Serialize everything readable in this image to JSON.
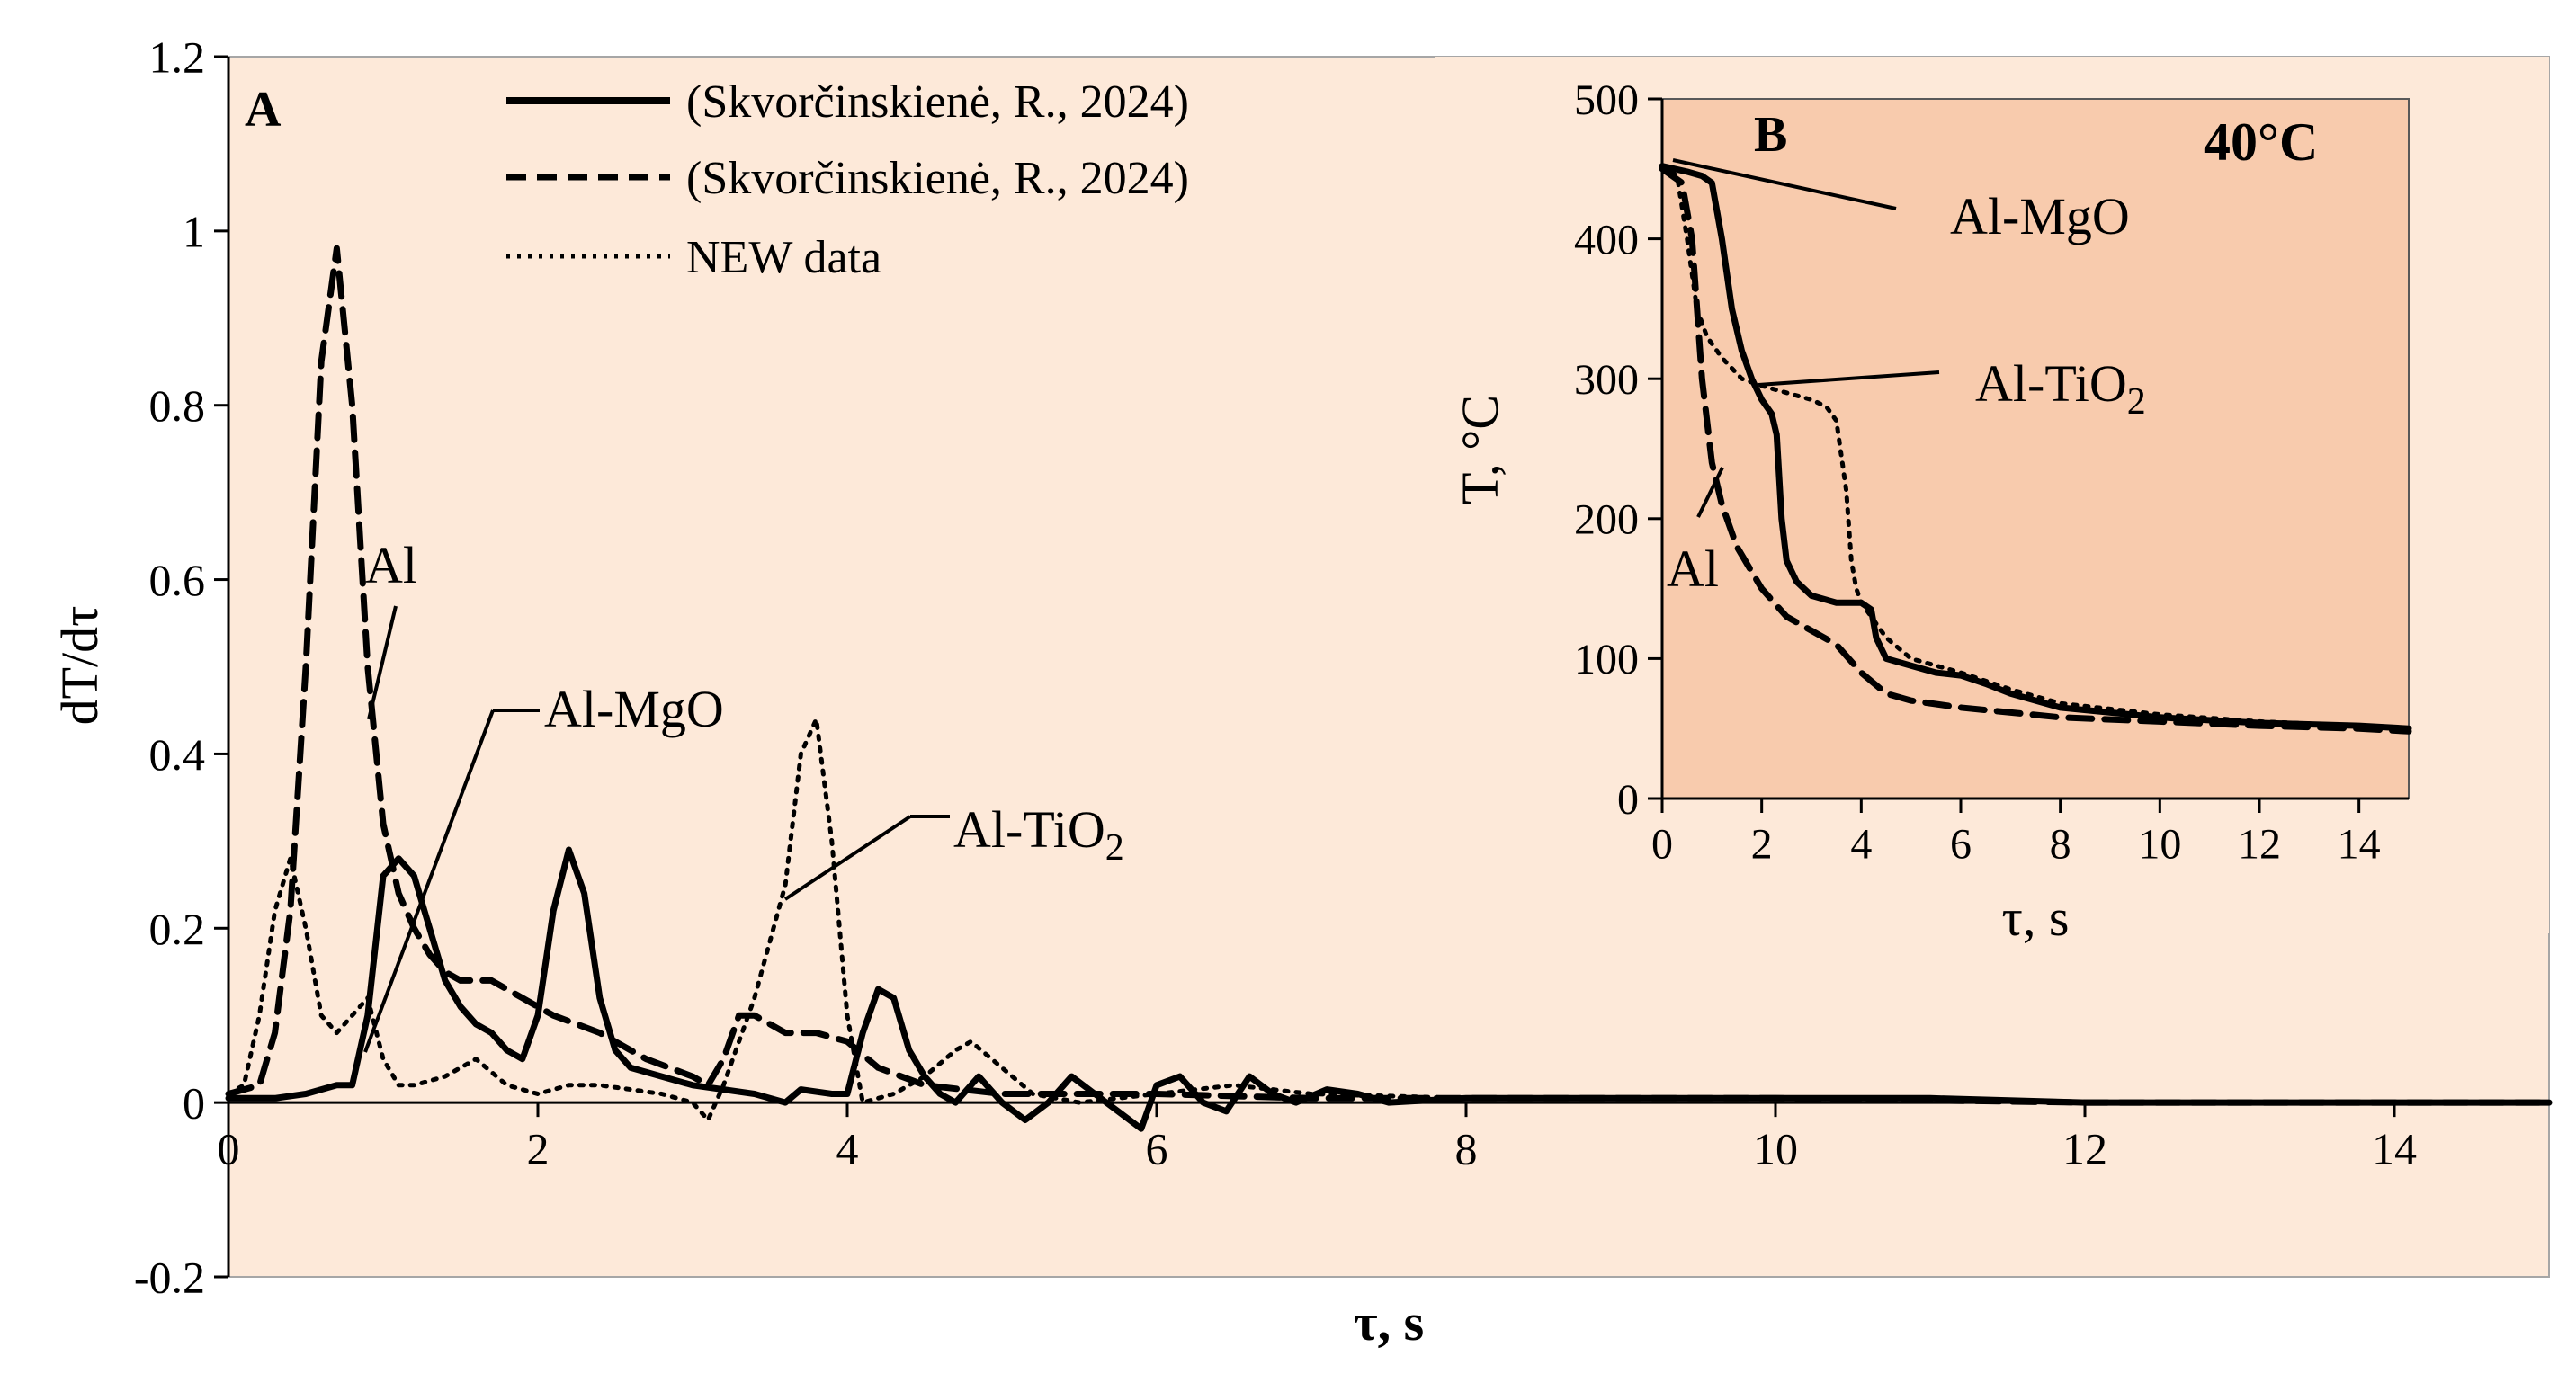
{
  "colors": {
    "panel_a_bg": "#fde9d9",
    "panel_b_bg": "#f8cbad",
    "line": "#000000"
  },
  "chart_data": [
    {
      "id": "A",
      "type": "line",
      "panel_label": "A",
      "xlabel": "τ, s",
      "ylabel": "dT/dτ",
      "xlim": [
        0,
        15
      ],
      "ylim": [
        -0.2,
        1.2
      ],
      "x_ticks": [
        0,
        2,
        4,
        6,
        8,
        10,
        12,
        14
      ],
      "x_tick_labels": [
        "0",
        "2",
        "4",
        "6",
        "8",
        "10",
        "12",
        "14"
      ],
      "y_ticks": [
        -0.2,
        0,
        0.2,
        0.4,
        0.6,
        0.8,
        1,
        1.2
      ],
      "y_tick_labels": [
        "-0.2",
        "0",
        "0.2",
        "0.4",
        "0.6",
        "0.8",
        "1",
        "1.2"
      ],
      "legend": [
        {
          "style": "solid",
          "label": "(Skvorčinskienė, R., 2024)"
        },
        {
          "style": "dashed",
          "label": "(Skvorčinskienė, R., 2024)"
        },
        {
          "style": "dotted",
          "label": "NEW data"
        }
      ],
      "series": [
        {
          "name": "Al-MgO",
          "style": "solid",
          "points": [
            [
              0,
              0.005
            ],
            [
              0.3,
              0.005
            ],
            [
              0.5,
              0.01
            ],
            [
              0.6,
              0.015
            ],
            [
              0.7,
              0.02
            ],
            [
              0.8,
              0.02
            ],
            [
              0.9,
              0.1
            ],
            [
              1.0,
              0.26
            ],
            [
              1.1,
              0.28
            ],
            [
              1.2,
              0.26
            ],
            [
              1.3,
              0.2
            ],
            [
              1.4,
              0.14
            ],
            [
              1.5,
              0.11
            ],
            [
              1.6,
              0.09
            ],
            [
              1.7,
              0.08
            ],
            [
              1.8,
              0.06
            ],
            [
              1.9,
              0.05
            ],
            [
              2.0,
              0.1
            ],
            [
              2.1,
              0.22
            ],
            [
              2.2,
              0.29
            ],
            [
              2.3,
              0.24
            ],
            [
              2.4,
              0.12
            ],
            [
              2.5,
              0.06
            ],
            [
              2.6,
              0.04
            ],
            [
              2.8,
              0.03
            ],
            [
              3.0,
              0.02
            ],
            [
              3.2,
              0.015
            ],
            [
              3.4,
              0.01
            ],
            [
              3.6,
              0.0
            ],
            [
              3.7,
              0.015
            ],
            [
              3.9,
              0.01
            ],
            [
              4.0,
              0.01
            ],
            [
              4.1,
              0.08
            ],
            [
              4.2,
              0.13
            ],
            [
              4.3,
              0.12
            ],
            [
              4.4,
              0.06
            ],
            [
              4.5,
              0.03
            ],
            [
              4.6,
              0.01
            ],
            [
              4.7,
              0.0
            ],
            [
              4.85,
              0.03
            ],
            [
              5.0,
              0.0
            ],
            [
              5.15,
              -0.02
            ],
            [
              5.3,
              0.0
            ],
            [
              5.45,
              0.03
            ],
            [
              5.6,
              0.01
            ],
            [
              5.75,
              -0.01
            ],
            [
              5.9,
              -0.03
            ],
            [
              6.0,
              0.02
            ],
            [
              6.15,
              0.03
            ],
            [
              6.3,
              0.0
            ],
            [
              6.45,
              -0.01
            ],
            [
              6.6,
              0.03
            ],
            [
              6.75,
              0.01
            ],
            [
              6.9,
              0.0
            ],
            [
              7.1,
              0.015
            ],
            [
              7.3,
              0.01
            ],
            [
              7.5,
              0.0
            ],
            [
              8,
              0.005
            ],
            [
              9,
              0.005
            ],
            [
              9.8,
              0.005
            ],
            [
              10,
              0.005
            ],
            [
              11,
              0.005
            ],
            [
              12,
              0.0
            ],
            [
              13,
              0.0
            ],
            [
              14,
              0.0
            ],
            [
              15,
              0.0
            ]
          ]
        },
        {
          "name": "Al",
          "style": "dashed",
          "points": [
            [
              0,
              0.01
            ],
            [
              0.2,
              0.02
            ],
            [
              0.3,
              0.08
            ],
            [
              0.4,
              0.22
            ],
            [
              0.5,
              0.5
            ],
            [
              0.6,
              0.85
            ],
            [
              0.7,
              0.98
            ],
            [
              0.8,
              0.8
            ],
            [
              0.9,
              0.5
            ],
            [
              1.0,
              0.32
            ],
            [
              1.1,
              0.24
            ],
            [
              1.2,
              0.2
            ],
            [
              1.3,
              0.17
            ],
            [
              1.4,
              0.15
            ],
            [
              1.5,
              0.14
            ],
            [
              1.7,
              0.14
            ],
            [
              1.9,
              0.12
            ],
            [
              2.1,
              0.1
            ],
            [
              2.4,
              0.08
            ],
            [
              2.7,
              0.05
            ],
            [
              3.0,
              0.03
            ],
            [
              3.1,
              0.02
            ],
            [
              3.2,
              0.05
            ],
            [
              3.3,
              0.1
            ],
            [
              3.4,
              0.1
            ],
            [
              3.6,
              0.08
            ],
            [
              3.8,
              0.08
            ],
            [
              4.0,
              0.07
            ],
            [
              4.2,
              0.04
            ],
            [
              4.5,
              0.02
            ],
            [
              5.0,
              0.01
            ],
            [
              5.5,
              0.01
            ],
            [
              6.0,
              0.01
            ],
            [
              7,
              0.005
            ],
            [
              8,
              0.005
            ],
            [
              10,
              0.005
            ],
            [
              12,
              0.0
            ],
            [
              15,
              0.0
            ]
          ]
        },
        {
          "name": "Al-TiO2",
          "style": "dotted",
          "points": [
            [
              0,
              0.01
            ],
            [
              0.1,
              0.02
            ],
            [
              0.2,
              0.1
            ],
            [
              0.3,
              0.22
            ],
            [
              0.4,
              0.28
            ],
            [
              0.5,
              0.2
            ],
            [
              0.6,
              0.1
            ],
            [
              0.7,
              0.08
            ],
            [
              0.8,
              0.1
            ],
            [
              0.9,
              0.12
            ],
            [
              1.0,
              0.05
            ],
            [
              1.1,
              0.02
            ],
            [
              1.2,
              0.02
            ],
            [
              1.4,
              0.03
            ],
            [
              1.6,
              0.05
            ],
            [
              1.8,
              0.02
            ],
            [
              2.0,
              0.01
            ],
            [
              2.2,
              0.02
            ],
            [
              2.4,
              0.02
            ],
            [
              2.6,
              0.015
            ],
            [
              2.8,
              0.01
            ],
            [
              3.0,
              0.0
            ],
            [
              3.1,
              -0.02
            ],
            [
              3.2,
              0.02
            ],
            [
              3.4,
              0.12
            ],
            [
              3.6,
              0.25
            ],
            [
              3.7,
              0.4
            ],
            [
              3.8,
              0.44
            ],
            [
              3.9,
              0.3
            ],
            [
              4.0,
              0.1
            ],
            [
              4.1,
              0.0
            ],
            [
              4.3,
              0.01
            ],
            [
              4.5,
              0.03
            ],
            [
              4.7,
              0.06
            ],
            [
              4.8,
              0.07
            ],
            [
              5.0,
              0.04
            ],
            [
              5.2,
              0.01
            ],
            [
              5.5,
              0.0
            ],
            [
              6.0,
              0.01
            ],
            [
              6.5,
              0.02
            ],
            [
              7,
              0.01
            ],
            [
              8,
              0.005
            ],
            [
              9,
              0.005
            ],
            [
              10,
              0.005
            ],
            [
              12,
              0.0
            ],
            [
              15,
              0.0
            ]
          ]
        }
      ],
      "annotations": [
        {
          "text": "Al",
          "series": "Al"
        },
        {
          "text": "Al-MgO",
          "series": "Al-MgO"
        },
        {
          "text": "Al-TiO",
          "subscript": "2",
          "series": "Al-TiO2"
        }
      ]
    },
    {
      "id": "B",
      "type": "line",
      "panel_label": "B",
      "title": "40°C",
      "xlabel": "τ, s",
      "ylabel": "T, °C",
      "xlim": [
        0,
        15
      ],
      "ylim": [
        0,
        500
      ],
      "x_ticks": [
        0,
        2,
        4,
        6,
        8,
        10,
        12,
        14
      ],
      "x_tick_labels": [
        "0",
        "2",
        "4",
        "6",
        "8",
        "10",
        "12",
        "14"
      ],
      "y_ticks": [
        0,
        100,
        200,
        300,
        400,
        500
      ],
      "y_tick_labels": [
        "0",
        "100",
        "200",
        "300",
        "400",
        "500"
      ],
      "series": [
        {
          "name": "Al-MgO",
          "style": "solid",
          "points": [
            [
              0,
              452
            ],
            [
              0.5,
              448
            ],
            [
              0.8,
              445
            ],
            [
              1.0,
              440
            ],
            [
              1.2,
              400
            ],
            [
              1.4,
              350
            ],
            [
              1.6,
              320
            ],
            [
              1.8,
              300
            ],
            [
              2.0,
              285
            ],
            [
              2.2,
              275
            ],
            [
              2.3,
              260
            ],
            [
              2.4,
              200
            ],
            [
              2.5,
              170
            ],
            [
              2.7,
              155
            ],
            [
              3.0,
              145
            ],
            [
              3.5,
              140
            ],
            [
              4.0,
              140
            ],
            [
              4.2,
              135
            ],
            [
              4.3,
              115
            ],
            [
              4.5,
              100
            ],
            [
              5.0,
              95
            ],
            [
              5.5,
              90
            ],
            [
              6.0,
              88
            ],
            [
              6.5,
              82
            ],
            [
              7,
              75
            ],
            [
              8,
              65
            ],
            [
              10,
              58
            ],
            [
              12,
              54
            ],
            [
              14,
              52
            ],
            [
              15,
              50
            ]
          ]
        },
        {
          "name": "Al",
          "style": "dashed",
          "points": [
            [
              0,
              450
            ],
            [
              0.4,
              440
            ],
            [
              0.6,
              400
            ],
            [
              0.8,
              300
            ],
            [
              1.0,
              240
            ],
            [
              1.2,
              210
            ],
            [
              1.5,
              180
            ],
            [
              2.0,
              150
            ],
            [
              2.5,
              130
            ],
            [
              3.0,
              120
            ],
            [
              3.5,
              110
            ],
            [
              4.0,
              90
            ],
            [
              4.5,
              75
            ],
            [
              5,
              70
            ],
            [
              6,
              65
            ],
            [
              8,
              58
            ],
            [
              10,
              55
            ],
            [
              12,
              52
            ],
            [
              14,
              50
            ],
            [
              15,
              48
            ]
          ]
        },
        {
          "name": "Al-TiO2",
          "style": "dotted",
          "points": [
            [
              0,
              452
            ],
            [
              0.3,
              445
            ],
            [
              0.5,
              400
            ],
            [
              0.7,
              350
            ],
            [
              0.9,
              330
            ],
            [
              1.2,
              315
            ],
            [
              1.6,
              300
            ],
            [
              2.0,
              295
            ],
            [
              2.5,
              290
            ],
            [
              3.0,
              285
            ],
            [
              3.3,
              280
            ],
            [
              3.5,
              270
            ],
            [
              3.7,
              220
            ],
            [
              3.8,
              170
            ],
            [
              3.9,
              150
            ],
            [
              4.0,
              140
            ],
            [
              4.2,
              130
            ],
            [
              4.5,
              115
            ],
            [
              5,
              100
            ],
            [
              5.5,
              95
            ],
            [
              6,
              90
            ],
            [
              7,
              78
            ],
            [
              8,
              68
            ],
            [
              10,
              60
            ],
            [
              12,
              55
            ],
            [
              14,
              52
            ],
            [
              15,
              50
            ]
          ]
        }
      ],
      "annotations": [
        {
          "text": "Al-MgO",
          "series": "Al-MgO"
        },
        {
          "text": "Al-TiO",
          "subscript": "2",
          "series": "Al-TiO2"
        },
        {
          "text": "Al",
          "series": "Al"
        }
      ]
    }
  ]
}
